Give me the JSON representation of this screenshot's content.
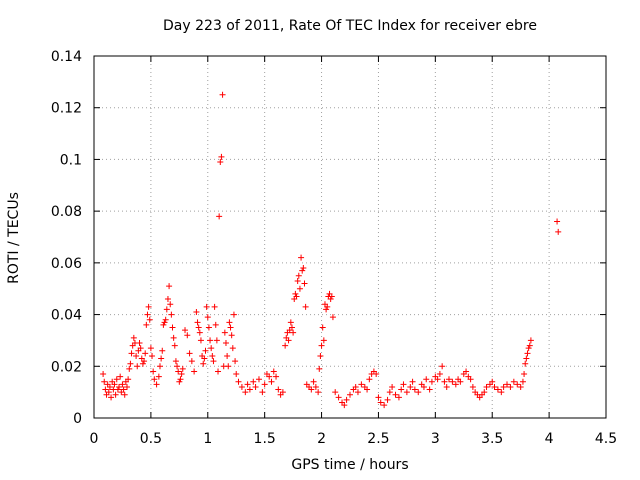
{
  "chart_data": {
    "type": "scatter",
    "title": "Day 223 of 2011, Rate Of TEC Index for receiver ebre",
    "xlabel": "GPS time / hours",
    "ylabel": "ROTI / TECUs",
    "xlim": [
      0,
      4.5
    ],
    "ylim": [
      0,
      0.14
    ],
    "xticks": [
      0,
      0.5,
      1,
      1.5,
      2,
      2.5,
      3,
      3.5,
      4,
      4.5
    ],
    "xtick_labels": [
      "0",
      "0.5",
      "1",
      "1.5",
      "2",
      "2.5",
      "3",
      "3.5",
      "4",
      "4.5"
    ],
    "yticks": [
      0,
      0.02,
      0.04,
      0.06,
      0.08,
      0.1,
      0.12,
      0.14
    ],
    "ytick_labels": [
      "0",
      "0.02",
      "0.04",
      "0.06",
      "0.08",
      "0.1",
      "0.12",
      "0.14"
    ],
    "grid": true,
    "marker": "+",
    "color": "#ff0000",
    "series": [
      {
        "name": "ROTI",
        "points": [
          [
            0.08,
            0.017
          ],
          [
            0.09,
            0.014
          ],
          [
            0.1,
            0.011
          ],
          [
            0.11,
            0.009
          ],
          [
            0.12,
            0.013
          ],
          [
            0.13,
            0.01
          ],
          [
            0.14,
            0.012
          ],
          [
            0.15,
            0.008
          ],
          [
            0.16,
            0.014
          ],
          [
            0.17,
            0.011
          ],
          [
            0.18,
            0.013
          ],
          [
            0.19,
            0.009
          ],
          [
            0.2,
            0.015
          ],
          [
            0.21,
            0.011
          ],
          [
            0.22,
            0.012
          ],
          [
            0.23,
            0.016
          ],
          [
            0.24,
            0.01
          ],
          [
            0.25,
            0.013
          ],
          [
            0.26,
            0.011
          ],
          [
            0.27,
            0.009
          ],
          [
            0.28,
            0.014
          ],
          [
            0.29,
            0.012
          ],
          [
            0.3,
            0.015
          ],
          [
            0.31,
            0.019
          ],
          [
            0.32,
            0.021
          ],
          [
            0.33,
            0.025
          ],
          [
            0.34,
            0.028
          ],
          [
            0.35,
            0.031
          ],
          [
            0.36,
            0.029
          ],
          [
            0.37,
            0.024
          ],
          [
            0.38,
            0.02
          ],
          [
            0.39,
            0.026
          ],
          [
            0.4,
            0.029
          ],
          [
            0.41,
            0.027
          ],
          [
            0.42,
            0.023
          ],
          [
            0.43,
            0.021
          ],
          [
            0.44,
            0.022
          ],
          [
            0.45,
            0.025
          ],
          [
            0.46,
            0.036
          ],
          [
            0.47,
            0.04
          ],
          [
            0.48,
            0.043
          ],
          [
            0.49,
            0.038
          ],
          [
            0.5,
            0.027
          ],
          [
            0.51,
            0.024
          ],
          [
            0.52,
            0.018
          ],
          [
            0.53,
            0.015
          ],
          [
            0.55,
            0.013
          ],
          [
            0.57,
            0.016
          ],
          [
            0.58,
            0.02
          ],
          [
            0.59,
            0.023
          ],
          [
            0.6,
            0.026
          ],
          [
            0.61,
            0.036
          ],
          [
            0.62,
            0.037
          ],
          [
            0.63,
            0.038
          ],
          [
            0.64,
            0.042
          ],
          [
            0.65,
            0.046
          ],
          [
            0.66,
            0.051
          ],
          [
            0.67,
            0.044
          ],
          [
            0.68,
            0.04
          ],
          [
            0.69,
            0.035
          ],
          [
            0.7,
            0.031
          ],
          [
            0.71,
            0.028
          ],
          [
            0.72,
            0.022
          ],
          [
            0.73,
            0.02
          ],
          [
            0.74,
            0.018
          ],
          [
            0.75,
            0.014
          ],
          [
            0.76,
            0.015
          ],
          [
            0.77,
            0.017
          ],
          [
            0.78,
            0.019
          ],
          [
            0.8,
            0.034
          ],
          [
            0.82,
            0.032
          ],
          [
            0.84,
            0.025
          ],
          [
            0.86,
            0.022
          ],
          [
            0.88,
            0.018
          ],
          [
            0.9,
            0.041
          ],
          [
            0.91,
            0.037
          ],
          [
            0.92,
            0.035
          ],
          [
            0.93,
            0.033
          ],
          [
            0.94,
            0.03
          ],
          [
            0.95,
            0.024
          ],
          [
            0.96,
            0.021
          ],
          [
            0.97,
            0.023
          ],
          [
            0.98,
            0.026
          ],
          [
            0.99,
            0.043
          ],
          [
            1.0,
            0.039
          ],
          [
            1.01,
            0.035
          ],
          [
            1.02,
            0.03
          ],
          [
            1.03,
            0.027
          ],
          [
            1.04,
            0.024
          ],
          [
            1.05,
            0.022
          ],
          [
            1.06,
            0.043
          ],
          [
            1.07,
            0.036
          ],
          [
            1.08,
            0.03
          ],
          [
            1.09,
            0.018
          ],
          [
            1.1,
            0.078
          ],
          [
            1.11,
            0.099
          ],
          [
            1.12,
            0.101
          ],
          [
            1.13,
            0.125
          ],
          [
            1.14,
            0.02
          ],
          [
            1.15,
            0.033
          ],
          [
            1.16,
            0.029
          ],
          [
            1.17,
            0.024
          ],
          [
            1.18,
            0.02
          ],
          [
            1.19,
            0.037
          ],
          [
            1.2,
            0.035
          ],
          [
            1.21,
            0.032
          ],
          [
            1.22,
            0.027
          ],
          [
            1.23,
            0.04
          ],
          [
            1.24,
            0.022
          ],
          [
            1.25,
            0.017
          ],
          [
            1.27,
            0.014
          ],
          [
            1.3,
            0.012
          ],
          [
            1.33,
            0.01
          ],
          [
            1.35,
            0.013
          ],
          [
            1.37,
            0.011
          ],
          [
            1.4,
            0.014
          ],
          [
            1.42,
            0.012
          ],
          [
            1.45,
            0.015
          ],
          [
            1.48,
            0.01
          ],
          [
            1.5,
            0.013
          ],
          [
            1.52,
            0.017
          ],
          [
            1.54,
            0.016
          ],
          [
            1.56,
            0.014
          ],
          [
            1.58,
            0.018
          ],
          [
            1.6,
            0.016
          ],
          [
            1.62,
            0.011
          ],
          [
            1.64,
            0.009
          ],
          [
            1.66,
            0.01
          ],
          [
            1.68,
            0.028
          ],
          [
            1.69,
            0.031
          ],
          [
            1.7,
            0.033
          ],
          [
            1.71,
            0.03
          ],
          [
            1.72,
            0.034
          ],
          [
            1.73,
            0.037
          ],
          [
            1.74,
            0.035
          ],
          [
            1.75,
            0.033
          ],
          [
            1.76,
            0.046
          ],
          [
            1.77,
            0.048
          ],
          [
            1.78,
            0.047
          ],
          [
            1.79,
            0.053
          ],
          [
            1.8,
            0.055
          ],
          [
            1.81,
            0.05
          ],
          [
            1.82,
            0.062
          ],
          [
            1.83,
            0.057
          ],
          [
            1.84,
            0.058
          ],
          [
            1.85,
            0.052
          ],
          [
            1.86,
            0.043
          ],
          [
            1.87,
            0.013
          ],
          [
            1.89,
            0.012
          ],
          [
            1.91,
            0.011
          ],
          [
            1.93,
            0.014
          ],
          [
            1.95,
            0.012
          ],
          [
            1.97,
            0.01
          ],
          [
            1.98,
            0.019
          ],
          [
            1.99,
            0.024
          ],
          [
            2.0,
            0.028
          ],
          [
            2.01,
            0.035
          ],
          [
            2.02,
            0.03
          ],
          [
            2.03,
            0.044
          ],
          [
            2.04,
            0.042
          ],
          [
            2.05,
            0.043
          ],
          [
            2.06,
            0.047
          ],
          [
            2.07,
            0.048
          ],
          [
            2.08,
            0.046
          ],
          [
            2.09,
            0.047
          ],
          [
            2.1,
            0.039
          ],
          [
            2.12,
            0.01
          ],
          [
            2.15,
            0.008
          ],
          [
            2.18,
            0.006
          ],
          [
            2.2,
            0.005
          ],
          [
            2.22,
            0.007
          ],
          [
            2.25,
            0.009
          ],
          [
            2.28,
            0.011
          ],
          [
            2.3,
            0.012
          ],
          [
            2.32,
            0.01
          ],
          [
            2.35,
            0.013
          ],
          [
            2.38,
            0.012
          ],
          [
            2.4,
            0.011
          ],
          [
            2.42,
            0.015
          ],
          [
            2.44,
            0.017
          ],
          [
            2.46,
            0.018
          ],
          [
            2.48,
            0.017
          ],
          [
            2.5,
            0.008
          ],
          [
            2.52,
            0.006
          ],
          [
            2.55,
            0.005
          ],
          [
            2.58,
            0.007
          ],
          [
            2.6,
            0.01
          ],
          [
            2.62,
            0.012
          ],
          [
            2.65,
            0.009
          ],
          [
            2.68,
            0.008
          ],
          [
            2.7,
            0.011
          ],
          [
            2.72,
            0.013
          ],
          [
            2.75,
            0.01
          ],
          [
            2.78,
            0.012
          ],
          [
            2.8,
            0.014
          ],
          [
            2.82,
            0.011
          ],
          [
            2.85,
            0.01
          ],
          [
            2.88,
            0.013
          ],
          [
            2.9,
            0.012
          ],
          [
            2.92,
            0.015
          ],
          [
            2.95,
            0.011
          ],
          [
            2.97,
            0.014
          ],
          [
            3.0,
            0.016
          ],
          [
            3.02,
            0.015
          ],
          [
            3.04,
            0.017
          ],
          [
            3.06,
            0.02
          ],
          [
            3.08,
            0.014
          ],
          [
            3.1,
            0.012
          ],
          [
            3.12,
            0.015
          ],
          [
            3.15,
            0.014
          ],
          [
            3.18,
            0.013
          ],
          [
            3.2,
            0.015
          ],
          [
            3.22,
            0.014
          ],
          [
            3.25,
            0.017
          ],
          [
            3.27,
            0.018
          ],
          [
            3.29,
            0.016
          ],
          [
            3.31,
            0.015
          ],
          [
            3.33,
            0.012
          ],
          [
            3.35,
            0.01
          ],
          [
            3.37,
            0.009
          ],
          [
            3.39,
            0.008
          ],
          [
            3.41,
            0.009
          ],
          [
            3.43,
            0.01
          ],
          [
            3.45,
            0.012
          ],
          [
            3.48,
            0.013
          ],
          [
            3.5,
            0.014
          ],
          [
            3.52,
            0.012
          ],
          [
            3.55,
            0.011
          ],
          [
            3.58,
            0.01
          ],
          [
            3.6,
            0.012
          ],
          [
            3.63,
            0.013
          ],
          [
            3.66,
            0.012
          ],
          [
            3.69,
            0.014
          ],
          [
            3.72,
            0.013
          ],
          [
            3.75,
            0.012
          ],
          [
            3.77,
            0.014
          ],
          [
            3.78,
            0.017
          ],
          [
            3.79,
            0.021
          ],
          [
            3.8,
            0.023
          ],
          [
            3.81,
            0.025
          ],
          [
            3.82,
            0.027
          ],
          [
            3.83,
            0.028
          ],
          [
            3.84,
            0.03
          ],
          [
            4.07,
            0.076
          ],
          [
            4.08,
            0.072
          ]
        ]
      }
    ]
  }
}
